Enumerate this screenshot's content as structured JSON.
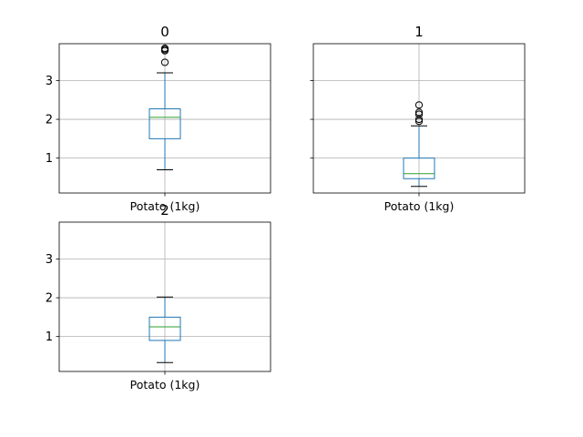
{
  "chart_data": [
    {
      "type": "box",
      "title": "0",
      "categories": [
        "Potato (1kg)"
      ],
      "ylim": [
        0.1,
        3.95
      ],
      "yticks": [
        1,
        2,
        3
      ],
      "grid": true,
      "box": {
        "whislo": 0.7,
        "q1": 1.5,
        "med": 2.05,
        "q3": 2.27,
        "whishi": 3.2
      },
      "fliers": [
        3.47,
        3.77,
        3.8,
        3.83
      ]
    },
    {
      "type": "box",
      "title": "1",
      "categories": [
        "Potato (1kg)"
      ],
      "ylim": [
        0.1,
        3.95
      ],
      "yticks": [
        1,
        2,
        3
      ],
      "grid": true,
      "box": {
        "whislo": 0.27,
        "q1": 0.47,
        "med": 0.6,
        "q3": 1.0,
        "whishi": 1.83
      },
      "fliers": [
        1.95,
        2.0,
        2.13,
        2.18,
        2.37
      ]
    },
    {
      "type": "box",
      "title": "2",
      "categories": [
        "Potato (1kg)"
      ],
      "ylim": [
        0.1,
        3.95
      ],
      "yticks": [
        1,
        2,
        3
      ],
      "grid": true,
      "box": {
        "whislo": 0.33,
        "q1": 0.9,
        "med": 1.25,
        "q3": 1.5,
        "whishi": 2.02
      },
      "fliers": []
    }
  ],
  "colors": {
    "box": "#1f77b4",
    "median": "#2ca02c",
    "whisker_cap": "#000000",
    "grid": "#b0b0b0",
    "axes": "#000000",
    "text": "#000000"
  }
}
